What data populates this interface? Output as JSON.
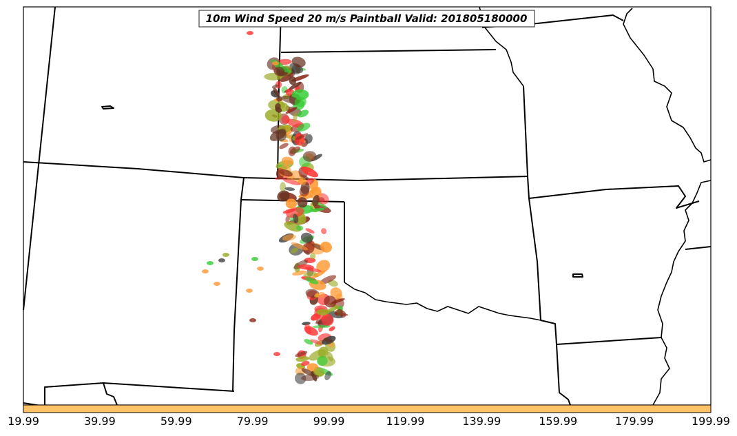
{
  "title": "10m Wind Speed 20 m/s Paintball Valid: 201805180000",
  "colorbar": {
    "tick_labels": [
      "19.99",
      "39.99",
      "59.99",
      "79.99",
      "99.99",
      "119.99",
      "139.99",
      "159.99",
      "179.99",
      "199.99"
    ],
    "range": [
      19.99,
      199.99
    ],
    "fill_color": "#ffc266"
  },
  "paint_colors": [
    "#ff3333",
    "#ff9933",
    "#33cc33",
    "#8b2a1a",
    "#404040",
    "#99aa22",
    "#663322"
  ],
  "map_region": "US Southern Plains"
}
